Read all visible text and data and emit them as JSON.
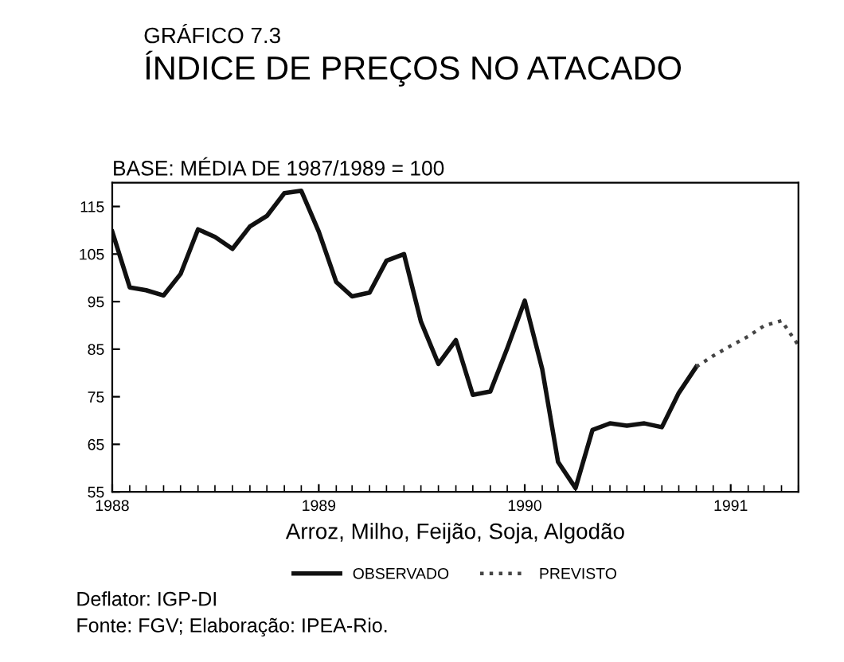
{
  "chart_data": {
    "type": "line",
    "subtitle": "GRÁFICO 7.3",
    "title": "ÍNDICE DE PREÇOS NO ATACADO",
    "xlabel": "Arroz, Milho, Feijão, Soja, Algodão",
    "annotations": [
      "BASE: MÉDIA DE 1987/1989 = 100",
      "Deflator: IGP-DI",
      "Fonte: FGV; Elaboração: IPEA-Rio."
    ],
    "x": [
      "1988-01",
      "1988-02",
      "1988-03",
      "1988-04",
      "1988-05",
      "1988-06",
      "1988-07",
      "1988-08",
      "1988-09",
      "1988-10",
      "1988-11",
      "1988-12",
      "1989-01",
      "1989-02",
      "1989-03",
      "1989-04",
      "1989-05",
      "1989-06",
      "1989-07",
      "1989-08",
      "1989-09",
      "1989-10",
      "1989-11",
      "1989-12",
      "1990-01",
      "1990-02",
      "1990-03",
      "1990-04",
      "1990-05",
      "1990-06",
      "1990-07",
      "1990-08",
      "1990-09",
      "1990-10",
      "1990-11"
    ],
    "series": [
      {
        "name": "OBSERVADO",
        "color": "#111111",
        "line_style": "solid",
        "values": [
          109.7,
          98,
          97.4,
          96.3,
          100.8,
          110.2,
          108.6,
          106.1,
          110.8,
          113,
          117.8,
          118.3,
          109.7,
          99.1,
          96.1,
          96.9,
          103.6,
          105,
          90.8,
          81.9,
          86.9,
          75.4,
          76.1,
          85.2,
          95.2,
          80.8,
          61.3,
          55.8,
          68,
          69.4,
          68.9,
          69.4,
          68.6,
          75.8,
          81.3
        ]
      },
      {
        "name": "PREVISTO",
        "color": "#444444",
        "line_style": "dotted",
        "x": [
          "1990-11",
          "1990-12",
          "1991-01",
          "1991-02",
          "1991-03",
          "1991-04",
          "1991-05"
        ],
        "values": [
          81.3,
          83.6,
          85.7,
          87.7,
          89.9,
          91,
          85.8
        ]
      }
    ],
    "xlim": [
      "1988-01",
      "1991-05"
    ],
    "xticks": [
      "1988",
      "1989",
      "1990",
      "1991"
    ],
    "ylim": [
      55,
      120
    ],
    "yticks": [
      55,
      65,
      75,
      85,
      95,
      105,
      115
    ],
    "grid": false,
    "legend": "bottom",
    "marker": "none"
  }
}
